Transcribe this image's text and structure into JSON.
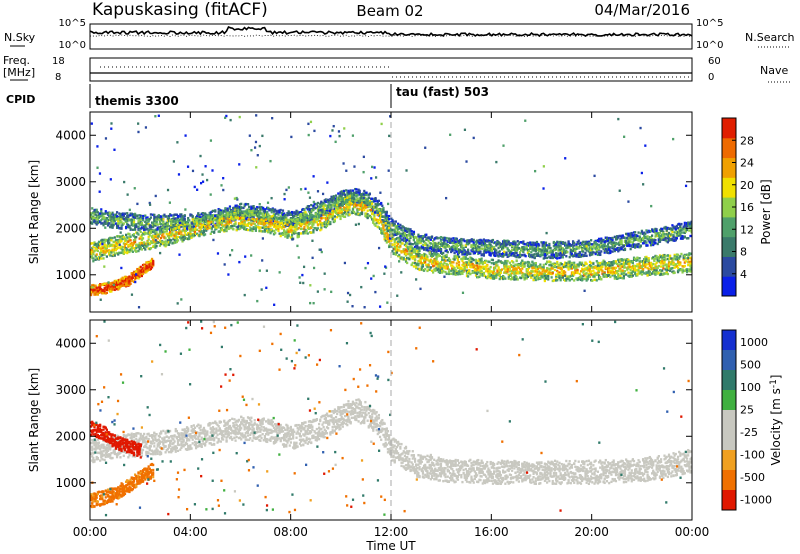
{
  "header": {
    "station": "Kapuskasing (fitACF)",
    "beam": "Beam 02",
    "date": "04/Mar/2016"
  },
  "top_panels": {
    "nsky_label": "N.Sky",
    "nsky_ticks": [
      "10^5",
      "10^0"
    ],
    "nsearch_label": "N.Search",
    "freq_label": "Freq.",
    "freq_unit": "[MHz]",
    "freq_ticks": [
      "18",
      "8"
    ],
    "nave_label": "Nave",
    "nave_ticks": [
      "60",
      "0"
    ],
    "cpid_label": "CPID",
    "cpid_segments": [
      "themis 3300",
      "tau (fast) 503"
    ]
  },
  "time_axis": {
    "label": "Time UT",
    "ticks": [
      "00:00",
      "04:00",
      "08:00",
      "12:00",
      "16:00",
      "20:00",
      "00:00"
    ]
  },
  "colors": {
    "power_scale": [
      "#0a20e8",
      "#2b4aa0",
      "#3a7a6a",
      "#4fa06a",
      "#8fcf4a",
      "#f0e000",
      "#f0a000",
      "#ee6a00",
      "#e01e00"
    ],
    "velocity_scale": [
      "#1530d0",
      "#3060b0",
      "#307a6a",
      "#40b040",
      "#c8c8c0",
      "#c8c8c0",
      "#f0a020",
      "#f07000",
      "#e01800"
    ],
    "ground_scatter": "#c8c8c0"
  },
  "chart_data": [
    {
      "type": "heatmap",
      "panel": "power",
      "ylabel": "Slant Range [km]",
      "yticks": [
        "1000",
        "2000",
        "3000",
        "4000"
      ],
      "ylim": [
        200,
        4500
      ],
      "xlim_hours": [
        0,
        24
      ],
      "colorbar_label": "Power [dB]",
      "colorbar_ticks": [
        "4",
        "8",
        "12",
        "16",
        "20",
        "24",
        "28"
      ],
      "colorbar_range": [
        0,
        30
      ],
      "echo_bands": [
        {
          "name": "upper band",
          "t": [
            0,
            1,
            2,
            3,
            4,
            5,
            6,
            7,
            8,
            9,
            10,
            10.5,
            11,
            11.5,
            12,
            13,
            14,
            16,
            18,
            20,
            22,
            24
          ],
          "r": [
            2300,
            2200,
            2150,
            2150,
            2150,
            2250,
            2400,
            2300,
            2200,
            2400,
            2650,
            2700,
            2650,
            2450,
            2050,
            1750,
            1650,
            1600,
            1550,
            1600,
            1800,
            2000
          ],
          "width": 350,
          "power": 9
        },
        {
          "name": "main band",
          "t": [
            0,
            1,
            2,
            3,
            4,
            5,
            6,
            7,
            8,
            9,
            10,
            10.5,
            11,
            11.5,
            12,
            13,
            14,
            16,
            18,
            20,
            22,
            24
          ],
          "r": [
            1500,
            1650,
            1750,
            1850,
            2000,
            2150,
            2200,
            2150,
            2000,
            2150,
            2450,
            2550,
            2450,
            2200,
            1700,
            1350,
            1250,
            1150,
            1100,
            1100,
            1200,
            1300
          ],
          "width": 420,
          "power": 16
        },
        {
          "name": "near band",
          "t": [
            0,
            0.5,
            1,
            1.5,
            2,
            2.5
          ],
          "r": [
            700,
            720,
            800,
            900,
            1100,
            1300
          ],
          "width": 220,
          "power": 26
        }
      ]
    },
    {
      "type": "heatmap",
      "panel": "velocity",
      "ylabel": "Slant Range [km]",
      "yticks": [
        "1000",
        "2000",
        "3000",
        "4000"
      ],
      "ylim": [
        200,
        4500
      ],
      "xlim_hours": [
        0,
        24
      ],
      "colorbar_label": "Velocity [m s^-1]",
      "colorbar_ticks": [
        "1000",
        "500",
        "100",
        "25",
        "-25",
        "-100",
        "-500",
        "-1000"
      ],
      "echo_bands": [
        {
          "name": "ground scatter",
          "t": [
            0,
            1,
            2,
            3,
            4,
            5,
            6,
            7,
            8,
            9,
            10,
            10.5,
            11,
            11.5,
            12,
            13,
            14,
            16,
            18,
            20,
            22,
            24
          ],
          "r": [
            1700,
            1800,
            1850,
            1900,
            2000,
            2100,
            2200,
            2150,
            2000,
            2150,
            2450,
            2600,
            2500,
            2250,
            1750,
            1400,
            1300,
            1250,
            1250,
            1250,
            1300,
            1500
          ],
          "width": 500,
          "velocity": 0
        },
        {
          "name": "near range",
          "t": [
            0,
            0.5,
            1,
            1.5,
            2,
            2.5
          ],
          "r": [
            650,
            700,
            800,
            950,
            1150,
            1300
          ],
          "width": 300,
          "velocity": -250
        },
        {
          "name": "upper scatter",
          "t": [
            0,
            0.5,
            1,
            1.5,
            2
          ],
          "r": [
            2200,
            2100,
            1900,
            1800,
            1700
          ],
          "width": 300,
          "velocity": -900
        }
      ]
    }
  ]
}
